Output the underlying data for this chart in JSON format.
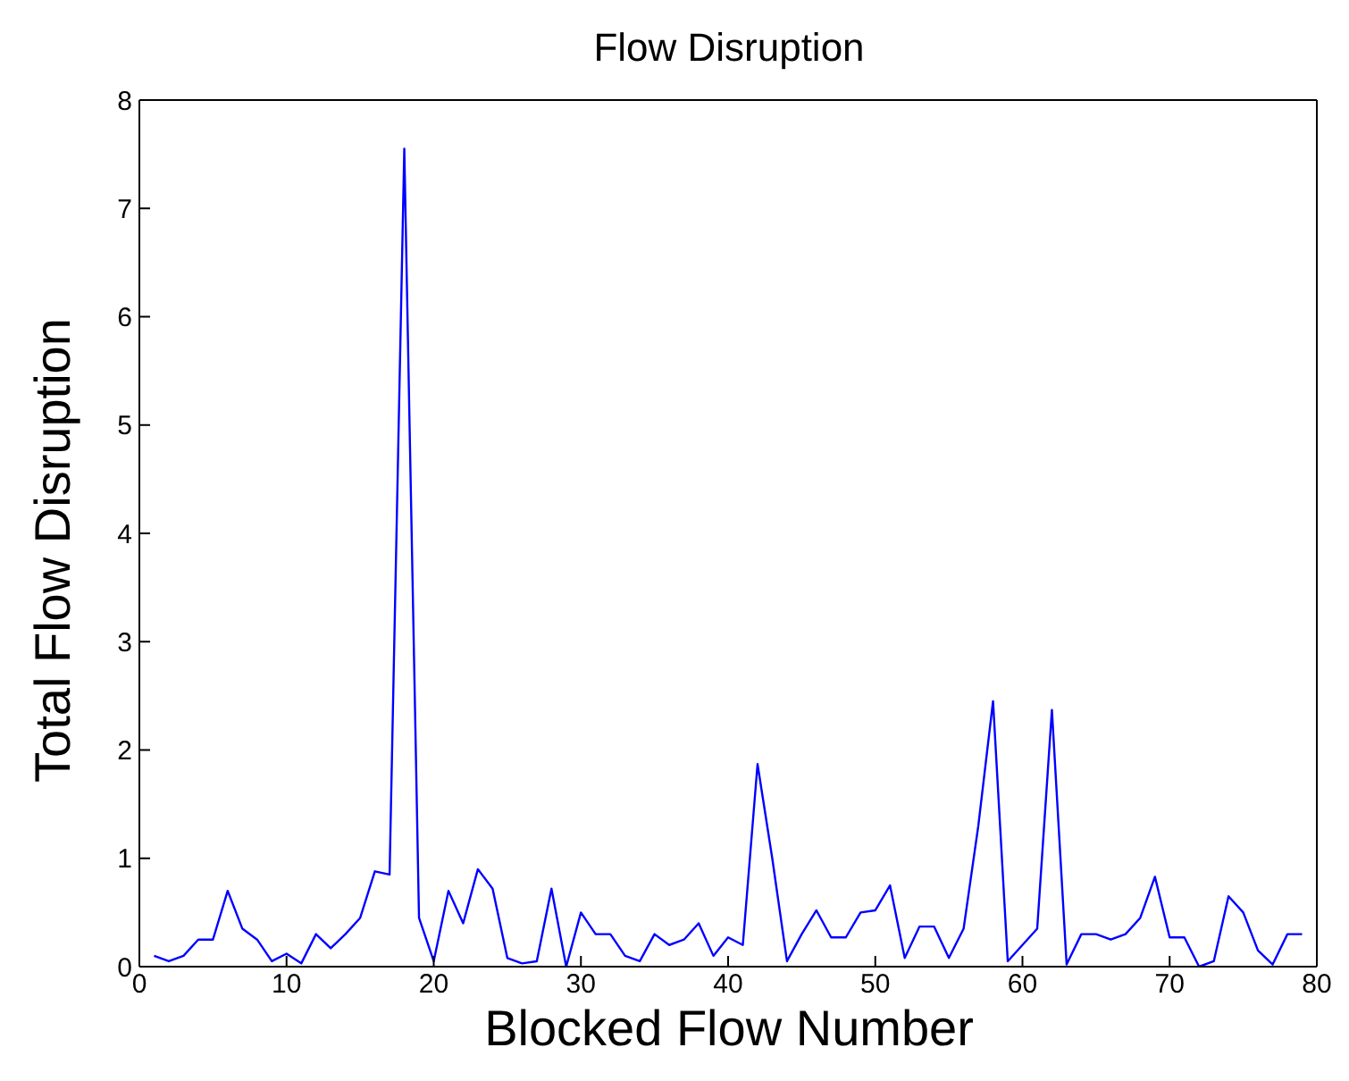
{
  "chart_data": {
    "type": "line",
    "title": "Flow Disruption",
    "xlabel": "Blocked Flow Number",
    "ylabel": "Total Flow Disruption",
    "x": [
      1,
      2,
      3,
      4,
      5,
      6,
      7,
      8,
      9,
      10,
      11,
      12,
      13,
      14,
      15,
      16,
      17,
      18,
      19,
      20,
      21,
      22,
      23,
      24,
      25,
      26,
      27,
      28,
      29,
      30,
      31,
      32,
      33,
      34,
      35,
      36,
      37,
      38,
      39,
      40,
      41,
      42,
      43,
      44,
      45,
      46,
      47,
      48,
      49,
      50,
      51,
      52,
      53,
      54,
      55,
      56,
      57,
      58,
      59,
      60,
      61,
      62,
      63,
      64,
      65,
      66,
      67,
      68,
      69,
      70,
      71,
      72,
      73,
      74,
      75,
      76,
      77,
      78,
      79
    ],
    "series": [
      {
        "color": "#0000ff",
        "values": [
          0.1,
          0.05,
          0.1,
          0.25,
          0.25,
          0.7,
          0.35,
          0.25,
          0.05,
          0.12,
          0.03,
          0.3,
          0.17,
          0.3,
          0.45,
          0.88,
          0.85,
          7.55,
          0.45,
          0.05,
          0.7,
          0.4,
          0.9,
          0.72,
          0.08,
          0.03,
          0.05,
          0.72,
          0.0,
          0.5,
          0.3,
          0.3,
          0.1,
          0.05,
          0.3,
          0.2,
          0.25,
          0.4,
          0.1,
          0.27,
          0.2,
          1.87,
          1.0,
          0.05,
          0.3,
          0.52,
          0.27,
          0.27,
          0.5,
          0.52,
          0.75,
          0.08,
          0.37,
          0.37,
          0.08,
          0.35,
          1.3,
          2.45,
          0.05,
          0.2,
          0.35,
          2.37,
          0.02,
          0.3,
          0.3,
          0.25,
          0.3,
          0.45,
          0.83,
          0.27,
          0.27,
          0.0,
          0.05,
          0.65,
          0.5,
          0.15,
          0.02,
          0.3,
          0.3
        ]
      }
    ],
    "xlim": [
      0,
      80
    ],
    "xticks": [
      0,
      10,
      20,
      30,
      40,
      50,
      60,
      70,
      80
    ],
    "ylim": [
      0,
      8
    ],
    "yticks": [
      0,
      1,
      2,
      3,
      4,
      5,
      6,
      7,
      8
    ],
    "grid": false,
    "marker": "none",
    "line_style": "solid"
  }
}
